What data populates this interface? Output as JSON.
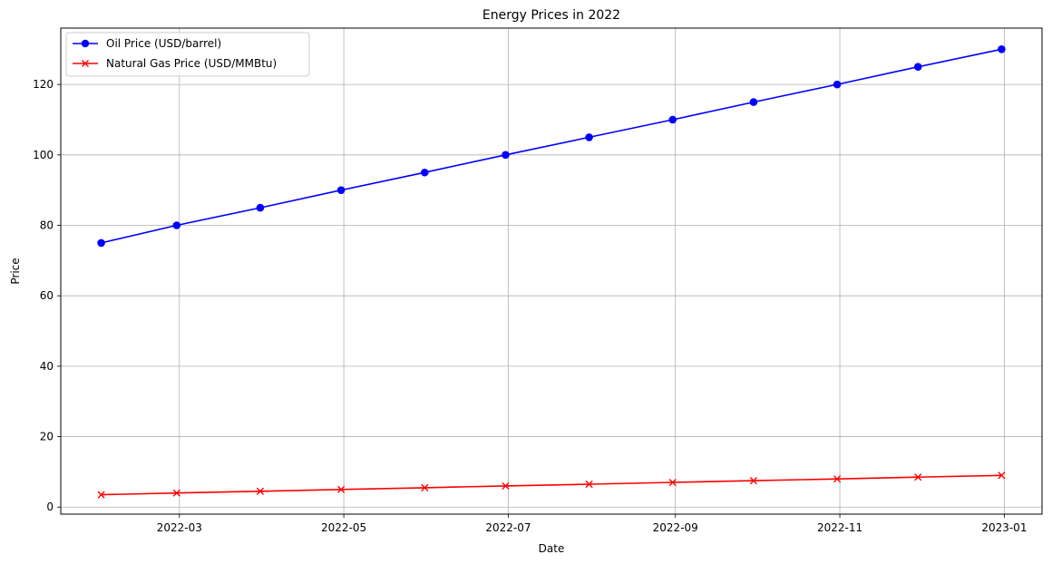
{
  "chart_data": {
    "type": "line",
    "title": "Energy Prices in 2022",
    "xlabel": "Date",
    "ylabel": "Price",
    "x": [
      "2022-01-31",
      "2022-02-28",
      "2022-03-31",
      "2022-04-30",
      "2022-05-31",
      "2022-06-30",
      "2022-07-31",
      "2022-08-31",
      "2022-09-30",
      "2022-10-31",
      "2022-11-30",
      "2022-12-31"
    ],
    "series": [
      {
        "name": "Oil Price (USD/barrel)",
        "values": [
          75,
          80,
          85,
          90,
          95,
          100,
          105,
          110,
          115,
          120,
          125,
          130
        ],
        "color": "#0000ff",
        "marker": "circle"
      },
      {
        "name": "Natural Gas Price (USD/MMBtu)",
        "values": [
          3.5,
          4.0,
          4.5,
          5.0,
          5.5,
          6.0,
          6.5,
          7.0,
          7.5,
          8.0,
          8.5,
          9.0
        ],
        "color": "#ff0000",
        "marker": "x"
      }
    ],
    "x_ticks": [
      "2022-03",
      "2022-05",
      "2022-07",
      "2022-09",
      "2022-11",
      "2023-01"
    ],
    "x_tick_dates": [
      "2022-03-01",
      "2022-05-01",
      "2022-07-01",
      "2022-09-01",
      "2022-11-01",
      "2023-01-01"
    ],
    "y_ticks": [
      0,
      20,
      40,
      60,
      80,
      100,
      120
    ],
    "xlim": [
      "2022-01-16",
      "2023-01-15"
    ],
    "ylim": [
      -2,
      136
    ],
    "grid": true,
    "legend_position": "top-left"
  }
}
